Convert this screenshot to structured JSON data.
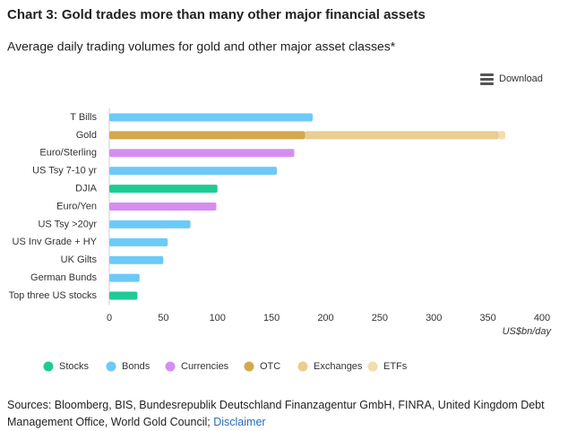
{
  "chart_data": {
    "type": "bar",
    "title": "Chart 3: Gold trades more than many other major financial assets",
    "subtitle": "Average daily trading volumes for gold and other major asset classes*",
    "download": "Download",
    "xlabel": "US$bn/day",
    "orientation": "horizontal",
    "stacked": true,
    "grid": false,
    "categories": [
      "T Bills",
      "Gold",
      "Euro/Sterling",
      "US Tsy 7-10 yr",
      "DJIA",
      "Euro/Yen",
      "US Tsy >20yr",
      "US Inv Grade + HY",
      "UK Gilts",
      "German Bunds",
      "Top three US stocks"
    ],
    "series": [
      {
        "name": "Stocks",
        "color": "#1fcb95",
        "values": [
          null,
          null,
          null,
          null,
          100,
          null,
          null,
          null,
          null,
          null,
          26
        ]
      },
      {
        "name": "Bonds",
        "color": "#6ccaf8",
        "values": [
          188,
          null,
          null,
          155,
          null,
          null,
          75,
          54,
          50,
          28,
          null
        ]
      },
      {
        "name": "Currencies",
        "color": "#d48ef0",
        "values": [
          null,
          null,
          171,
          null,
          null,
          99,
          null,
          null,
          null,
          null,
          null
        ]
      },
      {
        "name": "OTC",
        "color": "#d4a84c",
        "values": [
          null,
          181,
          null,
          null,
          null,
          null,
          null,
          null,
          null,
          null,
          null
        ]
      },
      {
        "name": "Exchanges",
        "color": "#e9cd91",
        "values": [
          null,
          179,
          null,
          null,
          null,
          null,
          null,
          null,
          null,
          null,
          null
        ]
      },
      {
        "name": "ETFs",
        "color": "#f3ddae",
        "values": [
          null,
          6,
          null,
          null,
          null,
          null,
          null,
          null,
          null,
          null,
          null
        ]
      }
    ],
    "xlim": [
      0,
      400
    ],
    "xticks": [
      0,
      50,
      100,
      150,
      200,
      250,
      300,
      350,
      400
    ],
    "sources": "Sources: Bloomberg, BIS, Bundesrepublik Deutschland Finanzagentur GmbH, FINRA, United Kingdom Debt Management Office, World Gold Council;",
    "disclaimer": "Disclaimer"
  }
}
